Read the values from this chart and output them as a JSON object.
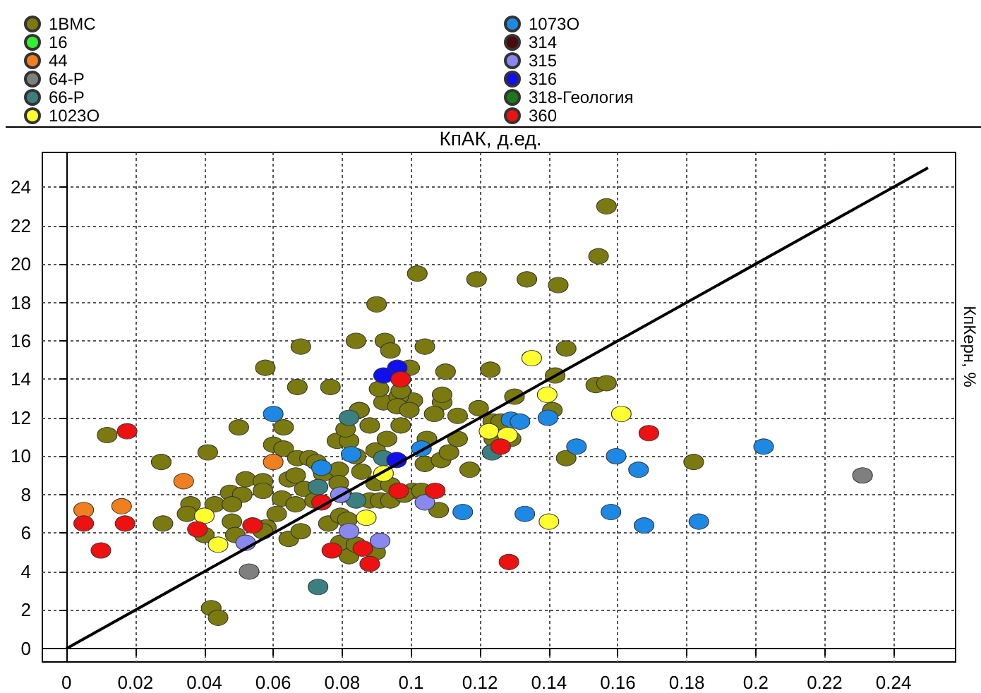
{
  "chart_data": {
    "type": "scatter",
    "xlabel": "КпАК, д.ед.",
    "ylabel": "КпКерн, %",
    "xlim": [
      -0.007,
      0.258
    ],
    "ylim": [
      -0.7,
      25.8
    ],
    "xticks": [
      0,
      0.02,
      0.04,
      0.06,
      0.08,
      0.1,
      0.12,
      0.14,
      0.16,
      0.18,
      0.2,
      0.22,
      0.24
    ],
    "yticks": [
      0,
      2,
      4,
      6,
      8,
      10,
      12,
      14,
      16,
      18,
      20,
      22,
      24
    ],
    "grid": true,
    "legend": "top",
    "marker": "circle",
    "series": [
      {
        "name": "1BMC",
        "color": "#7a7a10",
        "x": [
          0.0118,
          0.0275,
          0.041,
          0.05,
          0.063,
          0.028,
          0.036,
          0.035,
          0.04,
          0.043,
          0.0475,
          0.051,
          0.048,
          0.048,
          0.049,
          0.052,
          0.057,
          0.057,
          0.058,
          0.057,
          0.061,
          0.0625,
          0.0645,
          0.068,
          0.0665,
          0.06,
          0.063,
          0.067,
          0.0645,
          0.0665,
          0.069,
          0.0705,
          0.0725,
          0.072,
          0.0745,
          0.076,
          0.0785,
          0.079,
          0.079,
          0.0795,
          0.0815,
          0.08,
          0.082,
          0.084,
          0.085,
          0.081,
          0.088,
          0.0897,
          0.0856,
          0.0897,
          0.088,
          0.091,
          0.094,
          0.0795,
          0.082,
          0.084,
          0.0897,
          0.093,
          0.097,
          0.1005,
          0.098,
          0.103,
          0.104,
          0.1046,
          0.1087,
          0.111,
          0.1135,
          0.108,
          0.117,
          0.1005,
          0.109,
          0.1067,
          0.1135,
          0.1196,
          0.092,
          0.0964,
          0.042,
          0.044,
          0.094,
          0.0577,
          0.068,
          0.067,
          0.0766,
          0.084,
          0.09,
          0.0924,
          0.094,
          0.1018,
          0.104,
          0.119,
          0.0907,
          0.097,
          0.0996,
          0.11,
          0.109,
          0.123,
          0.085,
          0.096,
          0.0995,
          0.1567,
          0.1544,
          0.1336,
          0.1427,
          0.145,
          0.1418,
          0.13,
          0.1536,
          0.1567,
          0.141,
          0.1237,
          0.126,
          0.129,
          0.124,
          0.145,
          0.182
        ],
        "values": [
          11.1,
          9.7,
          10.2,
          11.5,
          11.5,
          6.5,
          7.5,
          7.0,
          5.9,
          7.5,
          8.1,
          8.0,
          7.5,
          6.6,
          5.9,
          8.8,
          8.7,
          8.2,
          6.3,
          6.1,
          7.0,
          7.8,
          5.7,
          6.1,
          7.5,
          10.6,
          10.4,
          9.9,
          8.8,
          9.0,
          8.3,
          9.9,
          9.7,
          7.7,
          9.1,
          6.5,
          10.8,
          9.3,
          8.6,
          6.9,
          6.7,
          8.0,
          10.8,
          10.0,
          12.4,
          11.4,
          11.6,
          10.3,
          9.2,
          8.6,
          7.7,
          7.7,
          7.7,
          5.5,
          4.8,
          5.4,
          5.0,
          10.9,
          11.6,
          8.2,
          8.0,
          8.2,
          9.6,
          10.9,
          9.8,
          10.2,
          10.9,
          7.2,
          9.3,
          12.9,
          12.8,
          12.2,
          12.1,
          12.5,
          12.8,
          13.1,
          2.1,
          1.6,
          8.5,
          14.6,
          15.7,
          13.6,
          13.6,
          16.0,
          17.9,
          16.0,
          15.5,
          19.5,
          15.7,
          19.2,
          13.5,
          13.4,
          14.6,
          14.4,
          13.2,
          14.5,
          12.4,
          12.6,
          12.4,
          23.0,
          20.4,
          19.2,
          18.9,
          15.6,
          14.2,
          13.1,
          13.7,
          13.8,
          12.4,
          11.8,
          11.8,
          10.9,
          10.9,
          9.9,
          9.7
        ]
      },
      {
        "name": "16",
        "color": "#33ee33"
      },
      {
        "name": "44",
        "color": "#f07f1f",
        "x": [
          0.005,
          0.016,
          0.034,
          0.06
        ],
        "values": [
          7.2,
          7.4,
          8.7,
          9.7
        ]
      },
      {
        "name": "64-Р",
        "color": "#7f7f7f",
        "x": [
          0.053,
          0.231
        ],
        "values": [
          4.0,
          9.0
        ]
      },
      {
        "name": "66-Р",
        "color": "#3c7f80",
        "x": [
          0.082,
          0.073,
          0.073,
          0.084,
          0.092,
          0.1235
        ],
        "values": [
          12.0,
          8.4,
          3.2,
          7.7,
          9.9,
          10.2
        ]
      },
      {
        "name": "1023О",
        "color": "#ffff30",
        "x": [
          0.04,
          0.044,
          0.087,
          0.092,
          0.135,
          0.1395,
          0.161,
          0.1226,
          0.128,
          0.14
        ],
        "values": [
          6.9,
          5.4,
          6.8,
          9.1,
          15.1,
          13.2,
          12.2,
          11.3,
          11.1,
          6.6
        ]
      },
      {
        "name": "1073О",
        "color": "#1e88e5",
        "x": [
          0.06,
          0.074,
          0.0826,
          0.103,
          0.115,
          0.129,
          0.1316,
          0.1397,
          0.148,
          0.1595,
          0.166,
          0.2023,
          0.133,
          0.158,
          0.1676,
          0.1835
        ],
        "values": [
          12.2,
          9.4,
          10.1,
          10.4,
          7.1,
          11.9,
          11.8,
          12.0,
          10.5,
          10.0,
          9.3,
          10.5,
          7.0,
          7.1,
          6.4,
          6.6
        ]
      },
      {
        "name": "314",
        "color": "#4a0a0a"
      },
      {
        "name": "315",
        "color": "#8888ee",
        "x": [
          0.052,
          0.082,
          0.091,
          0.104,
          0.0795
        ],
        "values": [
          5.5,
          6.1,
          5.6,
          7.6,
          8.0
        ]
      },
      {
        "name": "316",
        "color": "#1010ee",
        "x": [
          0.096,
          0.092,
          0.0958
        ],
        "values": [
          14.6,
          14.2,
          9.8
        ]
      },
      {
        "name": "318-Геология",
        "color": "#1a7a1a"
      },
      {
        "name": "360",
        "color": "#ee1111",
        "x": [
          0.005,
          0.01,
          0.0176,
          0.017,
          0.038,
          0.054,
          0.074,
          0.077,
          0.086,
          0.088,
          0.0964,
          0.107,
          0.097,
          0.126,
          0.169,
          0.1284
        ],
        "values": [
          6.5,
          5.1,
          11.3,
          6.5,
          6.2,
          6.4,
          7.6,
          5.1,
          5.2,
          4.4,
          8.2,
          8.2,
          14.0,
          10.5,
          11.2,
          4.5
        ]
      },
      {
        "type": "line",
        "color": "#000000",
        "marker": "none",
        "x": [
          0,
          0.25
        ],
        "values": [
          0,
          25
        ]
      }
    ]
  }
}
